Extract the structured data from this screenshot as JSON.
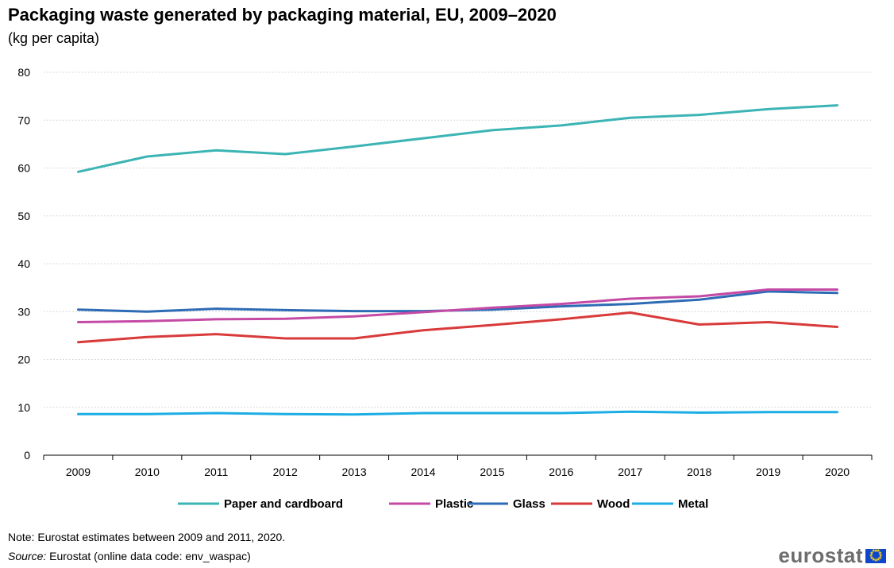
{
  "chart_data": {
    "type": "line",
    "title": "Packaging waste generated by packaging material, EU, 2009–2020",
    "subtitle": "(kg per capita)",
    "x": [
      "2009",
      "2010",
      "2011",
      "2012",
      "2013",
      "2014",
      "2015",
      "2016",
      "2017",
      "2018",
      "2019",
      "2020"
    ],
    "ylim": [
      0,
      80
    ],
    "yticks": [
      0,
      10,
      20,
      30,
      40,
      50,
      60,
      70,
      80
    ],
    "grid": true,
    "legend": "bottom",
    "series": [
      {
        "name": "Paper and cardboard",
        "color": "#3cb4b4",
        "values": [
          59.2,
          62.4,
          63.7,
          62.9,
          64.5,
          66.2,
          67.9,
          68.9,
          70.5,
          71.1,
          72.3,
          73.1
        ]
      },
      {
        "name": "Plastic",
        "color": "#c44aa6",
        "values": [
          27.8,
          28.0,
          28.4,
          28.5,
          29.0,
          29.9,
          30.8,
          31.6,
          32.7,
          33.2,
          34.6,
          34.6
        ]
      },
      {
        "name": "Glass",
        "color": "#2e6bb5",
        "values": [
          30.4,
          30.0,
          30.6,
          30.3,
          30.1,
          30.1,
          30.4,
          31.1,
          31.6,
          32.5,
          34.2,
          33.9
        ]
      },
      {
        "name": "Wood",
        "color": "#d93a3a",
        "values": [
          23.6,
          24.7,
          25.3,
          24.4,
          24.4,
          26.1,
          27.2,
          28.4,
          29.8,
          27.3,
          27.8,
          26.8
        ]
      },
      {
        "name": "Metal",
        "color": "#1cade4",
        "values": [
          8.6,
          8.6,
          8.8,
          8.6,
          8.5,
          8.8,
          8.8,
          8.8,
          9.1,
          8.9,
          9.0,
          9.0
        ]
      }
    ]
  },
  "footer": {
    "note": "Note: Eurostat estimates between 2009 and 2011, 2020.",
    "source_label": "Source:",
    "source_text": " Eurostat (online data code: env_waspac)",
    "logo_text": "eurostat"
  }
}
